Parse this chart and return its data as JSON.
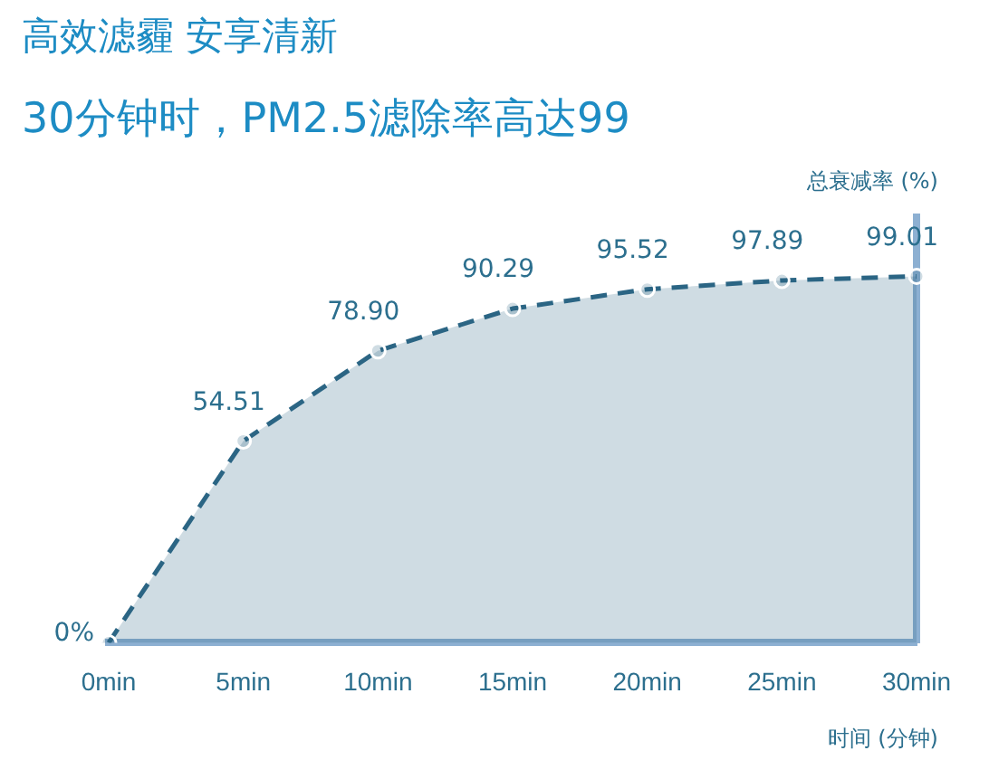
{
  "chart_data": {
    "type": "line",
    "title": "高效滤霾 安享清新",
    "subtitle": "30分钟时，PM2.5滤除率高达99",
    "xlabel": "时间 (分钟)",
    "ylabel": "总衰减率 (%)",
    "categories": [
      "0min",
      "5min",
      "10min",
      "15min",
      "20min",
      "25min",
      "30min"
    ],
    "ylim": [
      0,
      115
    ],
    "grid": false,
    "legend": false,
    "series": [
      {
        "type": "area",
        "color": "#2b6584",
        "line_style": "dashed",
        "marker": "circle",
        "values": [
          0,
          54.51,
          78.9,
          90.29,
          95.52,
          97.89,
          99.01
        ],
        "value_labels": [
          "0%",
          "54.51",
          "78.90",
          "90.29",
          "95.52",
          "97.89",
          "99.01"
        ]
      }
    ]
  }
}
